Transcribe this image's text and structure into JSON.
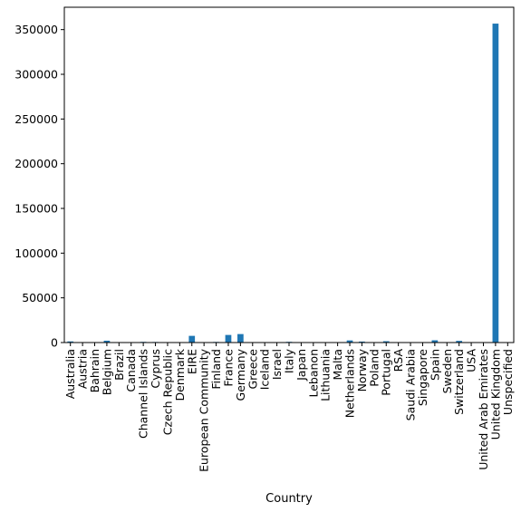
{
  "chart_data": {
    "type": "bar",
    "title": "",
    "xlabel": "Country",
    "ylabel": "",
    "ylim": [
      0,
      375000
    ],
    "yticks": [
      0,
      50000,
      100000,
      150000,
      200000,
      250000,
      300000,
      350000
    ],
    "ytick_labels": [
      "0",
      "50000",
      "100000",
      "150000",
      "200000",
      "250000",
      "300000",
      "350000"
    ],
    "bar_color": "#1f77b4",
    "grid": false,
    "categories": [
      "Australia",
      "Austria",
      "Bahrain",
      "Belgium",
      "Brazil",
      "Canada",
      "Channel Islands",
      "Cyprus",
      "Czech Republic",
      "Denmark",
      "EIRE",
      "European Community",
      "Finland",
      "France",
      "Germany",
      "Greece",
      "Iceland",
      "Israel",
      "Italy",
      "Japan",
      "Lebanon",
      "Lithuania",
      "Malta",
      "Netherlands",
      "Norway",
      "Poland",
      "Portugal",
      "RSA",
      "Saudi Arabia",
      "Singapore",
      "Spain",
      "Sweden",
      "Switzerland",
      "USA",
      "United Arab Emirates",
      "United Kingdom",
      "Unspecified"
    ],
    "values": [
      1260,
      400,
      17,
      2070,
      32,
      151,
      760,
      620,
      30,
      390,
      7480,
      61,
      690,
      8490,
      9490,
      146,
      182,
      250,
      800,
      360,
      45,
      35,
      128,
      2370,
      1090,
      340,
      1480,
      58,
      10,
      230,
      2530,
      460,
      1880,
      290,
      68,
      356700,
      240
    ]
  }
}
